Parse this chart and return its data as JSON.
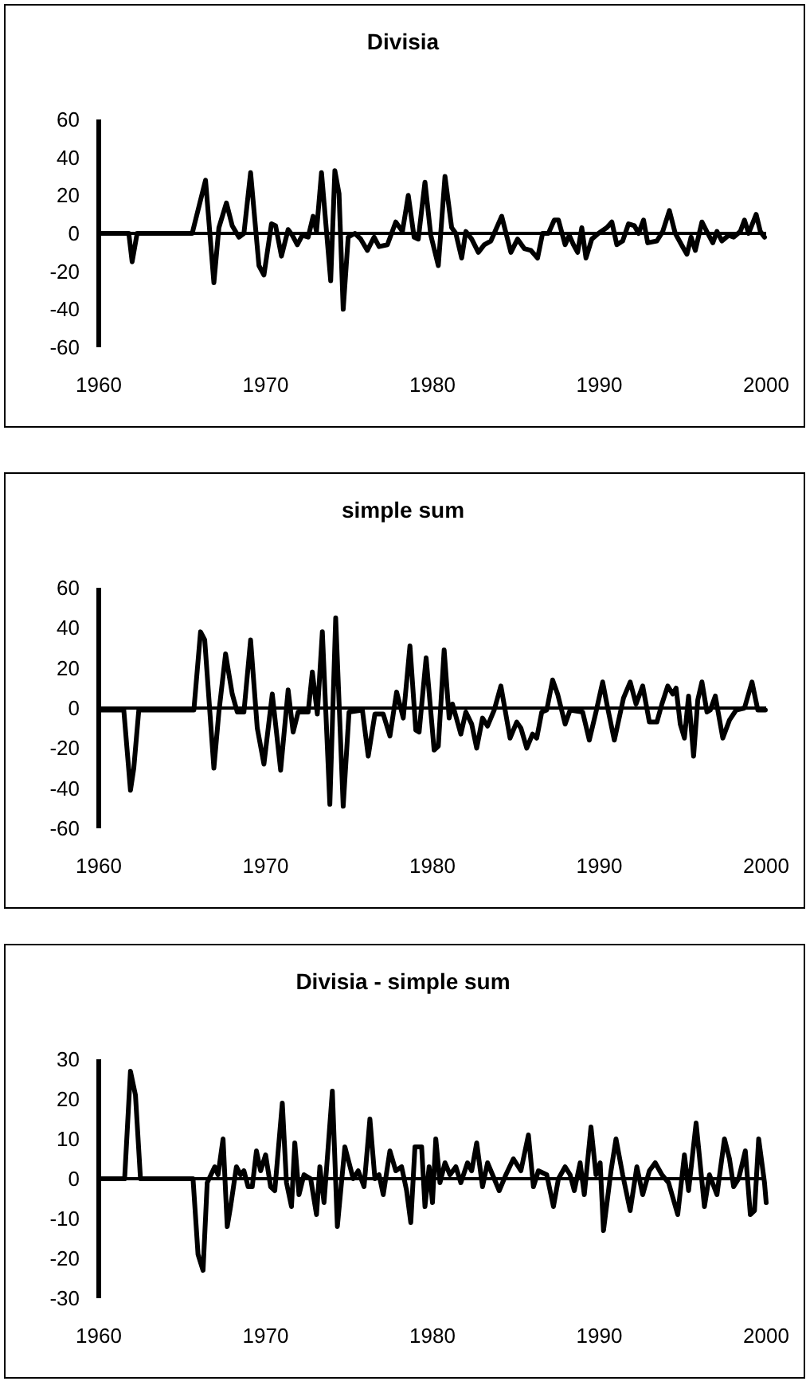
{
  "chart_data": [
    {
      "type": "line",
      "title": "Divisia",
      "xlim": [
        1960,
        2000
      ],
      "xticks": [
        1960,
        1970,
        1980,
        1990,
        2000
      ],
      "ylim": [
        -60,
        60
      ],
      "yticks": [
        -60,
        -40,
        -20,
        0,
        20,
        40,
        60
      ],
      "series": [
        {
          "color": "#000000",
          "x": [
            1960,
            1961.8,
            1962.0,
            1962.3,
            1965.6,
            1966.4,
            1966.9,
            1967.2,
            1967.65,
            1968,
            1968.4,
            1968.7,
            1969.1,
            1969.6,
            1969.9,
            1970.35,
            1970.6,
            1970.95,
            1971.35,
            1971.6,
            1971.9,
            1972.2,
            1972.55,
            1972.85,
            1973.05,
            1973.35,
            1973.9,
            1974.15,
            1974.4,
            1974.65,
            1974.95,
            1975.35,
            1975.7,
            1976.1,
            1976.5,
            1976.8,
            1977.3,
            1977.8,
            1978.2,
            1978.55,
            1978.9,
            1979.15,
            1979.55,
            1979.9,
            1980.35,
            1980.75,
            1981.15,
            1981.4,
            1981.75,
            1982.0,
            1982.35,
            1982.75,
            1983.1,
            1983.5,
            1984.15,
            1984.7,
            1985.1,
            1985.5,
            1985.9,
            1986.3,
            1986.6,
            1986.95,
            1987.3,
            1987.55,
            1987.95,
            1988.2,
            1988.45,
            1988.7,
            1988.95,
            1989.2,
            1989.55,
            1989.95,
            1990.45,
            1990.75,
            1991.05,
            1991.4,
            1991.75,
            1992.1,
            1992.35,
            1992.65,
            1992.9,
            1993.45,
            1993.8,
            1994.2,
            1994.55,
            1995.05,
            1995.25,
            1995.5,
            1995.75,
            1996.15,
            1996.5,
            1996.8,
            1997.05,
            1997.35,
            1997.75,
            1998.05,
            1998.45,
            1998.7,
            1998.95,
            1999.4,
            1999.65,
            1999.9
          ],
          "values": [
            0,
            0,
            -15,
            0,
            0,
            28,
            -26,
            3,
            16,
            4,
            -2,
            0,
            32,
            -17,
            -22,
            5,
            4,
            -12,
            2,
            -1,
            -6,
            -1,
            -2,
            9,
            1,
            32,
            -25,
            33,
            21,
            -40,
            -2,
            0,
            -3,
            -9,
            -2,
            -7,
            -6,
            6,
            1,
            20,
            -2,
            -3,
            27,
            -1,
            -17,
            30,
            3,
            0,
            -13,
            1,
            -3,
            -10,
            -6,
            -4,
            9,
            -10,
            -3,
            -8,
            -9,
            -13,
            0,
            0,
            7,
            7,
            -6,
            -1,
            -6,
            -10,
            3,
            -13,
            -3,
            0,
            3,
            6,
            -6,
            -4,
            5,
            4,
            0,
            7,
            -5,
            -4,
            1,
            12,
            0,
            -8,
            -11,
            -2,
            -9,
            6,
            0,
            -5,
            1,
            -4,
            -1,
            -2,
            1,
            7,
            0,
            10,
            1,
            -2
          ]
        }
      ]
    },
    {
      "type": "line",
      "title": "simple sum",
      "xlim": [
        1960,
        2000
      ],
      "xticks": [
        1960,
        1970,
        1980,
        1990,
        2000
      ],
      "ylim": [
        -60,
        60
      ],
      "yticks": [
        -60,
        -40,
        -20,
        0,
        20,
        40,
        60
      ],
      "series": [
        {
          "color": "#000000",
          "x": [
            1960,
            1961.5,
            1961.9,
            1962.1,
            1962.4,
            1965.7,
            1966.1,
            1966.35,
            1966.9,
            1967.2,
            1967.6,
            1968.0,
            1968.3,
            1968.7,
            1969.1,
            1969.5,
            1969.9,
            1970.4,
            1970.9,
            1971.35,
            1971.65,
            1971.95,
            1972.55,
            1972.8,
            1973.1,
            1973.4,
            1973.85,
            1974.2,
            1974.65,
            1975.0,
            1975.8,
            1976.15,
            1976.55,
            1977.05,
            1977.45,
            1977.85,
            1978.25,
            1978.65,
            1979.0,
            1979.2,
            1979.62,
            1980.1,
            1980.35,
            1980.7,
            1981.0,
            1981.2,
            1981.7,
            1982.0,
            1982.35,
            1982.65,
            1983.0,
            1983.3,
            1983.7,
            1984.1,
            1984.65,
            1985.05,
            1985.3,
            1985.65,
            1986.0,
            1986.25,
            1986.55,
            1986.85,
            1987.2,
            1987.5,
            1987.95,
            1988.25,
            1989.0,
            1989.4,
            1989.8,
            1990.2,
            1990.5,
            1990.9,
            1991.45,
            1991.85,
            1992.2,
            1992.6,
            1993.0,
            1993.45,
            1993.75,
            1994.1,
            1994.4,
            1994.6,
            1994.85,
            1995.1,
            1995.35,
            1995.65,
            1995.9,
            1996.15,
            1996.45,
            1996.65,
            1996.95,
            1997.4,
            1997.8,
            1998.2,
            1998.7,
            1999.15,
            1999.5,
            1999.95
          ],
          "values": [
            -1,
            -1,
            -41,
            -30,
            -1,
            -1,
            38,
            34,
            -30,
            -2,
            27,
            7,
            -2,
            -2,
            34,
            -10,
            -28,
            7,
            -31,
            9,
            -12,
            -2,
            -2,
            18,
            -3,
            38,
            -48,
            45,
            -49,
            -2,
            -1,
            -24,
            -3,
            -3,
            -14,
            8,
            -5,
            31,
            -11,
            -12,
            25,
            -21,
            -19,
            29,
            -5,
            2,
            -13,
            -2,
            -8,
            -20,
            -5,
            -9,
            -1,
            11,
            -15,
            -7,
            -10,
            -20,
            -13,
            -15,
            -2,
            -1,
            14,
            7,
            -8,
            -1,
            -2,
            -16,
            -2,
            13,
            0,
            -16,
            5,
            13,
            2,
            11,
            -7,
            -7,
            2,
            11,
            7,
            10,
            -8,
            -15,
            6,
            -24,
            4,
            13,
            -2,
            -1,
            6,
            -15,
            -6,
            -1,
            0,
            13,
            -1,
            -1
          ]
        }
      ]
    },
    {
      "type": "line",
      "title": "Divisia - simple sum",
      "xlim": [
        1960,
        2000
      ],
      "xticks": [
        1960,
        1970,
        1980,
        1990,
        2000
      ],
      "ylim": [
        -30,
        30
      ],
      "yticks": [
        -30,
        -20,
        -10,
        0,
        10,
        20,
        30
      ],
      "series": [
        {
          "color": "#000000",
          "x": [
            1960,
            1961.55,
            1961.9,
            1962.2,
            1962.5,
            1965.65,
            1965.95,
            1966.25,
            1966.5,
            1966.95,
            1967.15,
            1967.45,
            1967.7,
            1967.9,
            1968.25,
            1968.5,
            1968.7,
            1968.95,
            1969.2,
            1969.45,
            1969.7,
            1970.0,
            1970.3,
            1970.55,
            1971.0,
            1971.25,
            1971.55,
            1971.75,
            1972.0,
            1972.3,
            1972.7,
            1973.05,
            1973.25,
            1973.5,
            1974.0,
            1974.3,
            1974.75,
            1975.25,
            1975.55,
            1975.9,
            1976.25,
            1976.55,
            1976.8,
            1977.05,
            1977.45,
            1977.8,
            1978.15,
            1978.45,
            1978.7,
            1978.95,
            1979.35,
            1979.55,
            1979.8,
            1980.0,
            1980.2,
            1980.45,
            1980.75,
            1981.05,
            1981.4,
            1981.7,
            1982.1,
            1982.35,
            1982.65,
            1983.0,
            1983.3,
            1983.7,
            1984.0,
            1984.4,
            1984.85,
            1985.3,
            1985.75,
            1986.05,
            1986.35,
            1986.85,
            1987.25,
            1987.55,
            1987.95,
            1988.25,
            1988.5,
            1988.85,
            1989.1,
            1989.5,
            1989.8,
            1990.05,
            1990.25,
            1990.7,
            1991.0,
            1991.4,
            1991.85,
            1992.25,
            1992.6,
            1993.0,
            1993.35,
            1993.75,
            1994.15,
            1994.7,
            1995.1,
            1995.35,
            1995.8,
            1996.3,
            1996.6,
            1997.05,
            1997.5,
            1997.8,
            1998.05,
            1998.35,
            1998.75,
            1999.05,
            1999.3,
            1999.55,
            1999.9,
            2000
          ],
          "values": [
            0,
            0,
            27,
            21,
            0,
            0,
            -19,
            -23,
            -1,
            3,
            1,
            10,
            -12,
            -7,
            3,
            1,
            2,
            -2,
            -2,
            7,
            2,
            6,
            -2,
            -3,
            19,
            -1,
            -7,
            9,
            -4,
            1,
            0,
            -9,
            3,
            -6,
            22,
            -12,
            8,
            0,
            2,
            -2,
            15,
            0,
            1,
            -4,
            7,
            2,
            3,
            -3,
            -11,
            8,
            8,
            -7,
            3,
            -6,
            10,
            -1,
            4,
            1,
            3,
            -1,
            4,
            2,
            9,
            -2,
            4,
            0,
            -3,
            1,
            5,
            2,
            11,
            -2,
            2,
            1,
            -7,
            0,
            3,
            1,
            -3,
            4,
            -4,
            13,
            1,
            4,
            -13,
            2,
            10,
            1,
            -8,
            3,
            -4,
            2,
            4,
            1,
            -1,
            -9,
            6,
            -3,
            14,
            -7,
            1,
            -4,
            10,
            5,
            -2,
            0,
            7,
            -9,
            -8,
            10,
            -1,
            -6
          ]
        }
      ]
    }
  ]
}
